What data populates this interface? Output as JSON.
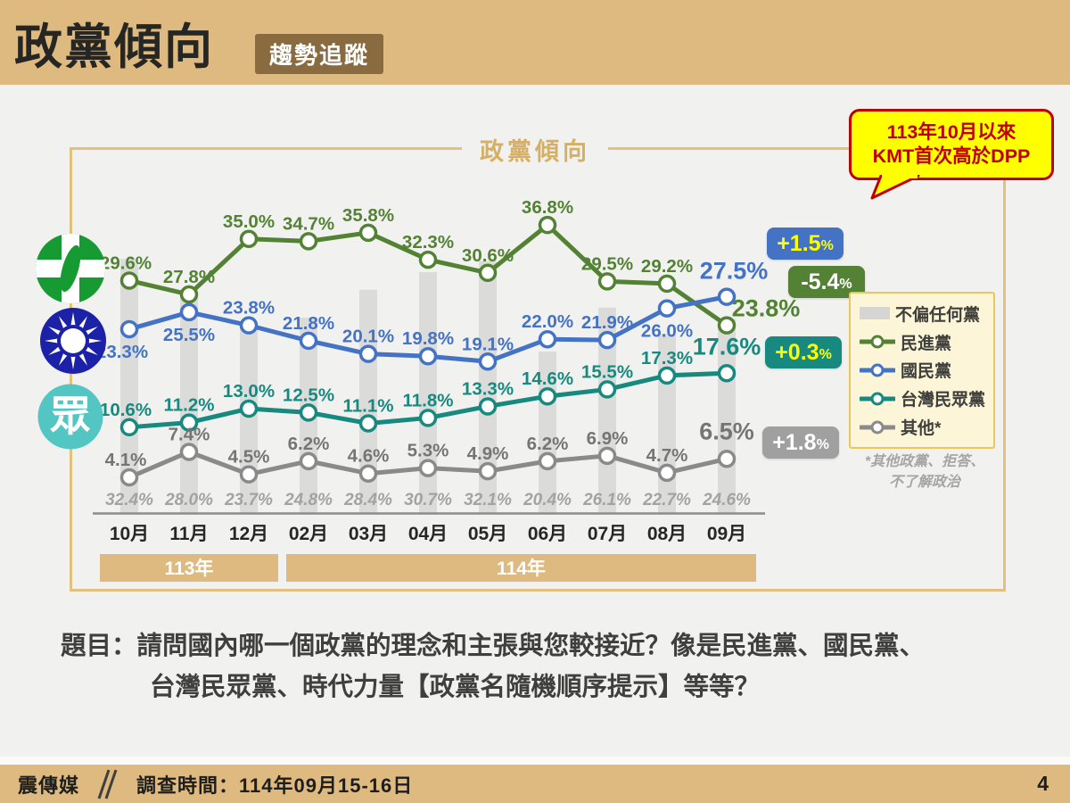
{
  "header": {
    "title": "政黨傾向",
    "badge": "趨勢追蹤"
  },
  "callout": {
    "line1": "113年10月以來",
    "line2": "KMT首次高於DPP"
  },
  "chart_title": "政黨傾向",
  "legend": {
    "items": [
      {
        "slug": "no-party",
        "type": "bar",
        "color": "#D5D5D3",
        "label": "不偏任何黨"
      },
      {
        "slug": "dpp",
        "type": "line",
        "color": "#548235",
        "label": "民進黨"
      },
      {
        "slug": "kmt",
        "type": "line",
        "color": "#4472C4",
        "label": "國民黨"
      },
      {
        "slug": "tpp",
        "type": "line",
        "color": "#17897F",
        "label": "台灣民眾黨"
      },
      {
        "slug": "other",
        "type": "line",
        "color": "#8A8A8A",
        "label": "其他*"
      }
    ],
    "footnote_line1": "*其他政黨、拒答、",
    "footnote_line2": "不了解政治"
  },
  "badges": [
    {
      "slug": "kmt",
      "value": "+1.5",
      "suffix": "%",
      "bg": "#4472C4",
      "color": "#FFFF00"
    },
    {
      "slug": "dpp",
      "value": "-5.4",
      "suffix": "%",
      "bg": "#548235",
      "color": "#FFFFFF"
    },
    {
      "slug": "tpp",
      "value": "+0.3",
      "suffix": "%",
      "bg": "#17897F",
      "color": "#FFFF00"
    },
    {
      "slug": "other",
      "value": "+1.8",
      "suffix": "%",
      "bg": "#A0A0A0",
      "color": "#FFFFFF"
    }
  ],
  "chart_data": {
    "type": "line",
    "title": "政黨傾向",
    "unit": "%",
    "categories": [
      "10月",
      "11月",
      "12月",
      "02月",
      "03月",
      "04月",
      "05月",
      "06月",
      "07月",
      "08月",
      "09月"
    ],
    "groups": [
      {
        "label": "113年",
        "from": 0,
        "to": 2
      },
      {
        "label": "114年",
        "from": 3,
        "to": 10
      }
    ],
    "bars": {
      "name": "不偏任何黨",
      "slug": "no-party",
      "color": "#D9D9D7",
      "label_color": "#A3A3A1",
      "values": [
        32.4,
        28.0,
        23.7,
        24.8,
        28.4,
        30.7,
        32.1,
        20.4,
        26.1,
        22.7,
        24.6
      ]
    },
    "series": [
      {
        "name": "民進黨",
        "slug": "dpp",
        "color": "#548235",
        "values": [
          29.6,
          27.8,
          35.0,
          34.7,
          35.8,
          32.3,
          30.6,
          36.8,
          29.5,
          29.2,
          23.8
        ]
      },
      {
        "name": "國民黨",
        "slug": "kmt",
        "color": "#4472C4",
        "values": [
          23.3,
          25.5,
          23.8,
          21.8,
          20.1,
          19.8,
          19.1,
          22.0,
          21.9,
          26.0,
          27.5
        ]
      },
      {
        "name": "台灣民眾黨",
        "slug": "tpp",
        "color": "#17897F",
        "values": [
          10.6,
          11.2,
          13.0,
          12.5,
          11.1,
          11.8,
          13.3,
          14.6,
          15.5,
          17.3,
          17.6
        ]
      },
      {
        "name": "其他*",
        "slug": "other",
        "color": "#8A8A8A",
        "label_color": "#757573",
        "values": [
          4.1,
          7.4,
          4.5,
          6.2,
          4.6,
          5.3,
          4.9,
          6.2,
          6.9,
          4.7,
          6.5
        ]
      }
    ],
    "ylim": [
      0,
      40
    ],
    "legend_position": "right",
    "grid": false
  },
  "question": {
    "line1": "題目：請問國內哪一個政黨的理念和主張與您較接近？像是民進黨、國民黨、",
    "line2": "台灣民眾黨、時代力量【政黨名隨機順序提示】等等？"
  },
  "footer": {
    "brand": "震傳媒",
    "survey": "調查時間：114年09月15-16日",
    "page": "4"
  }
}
